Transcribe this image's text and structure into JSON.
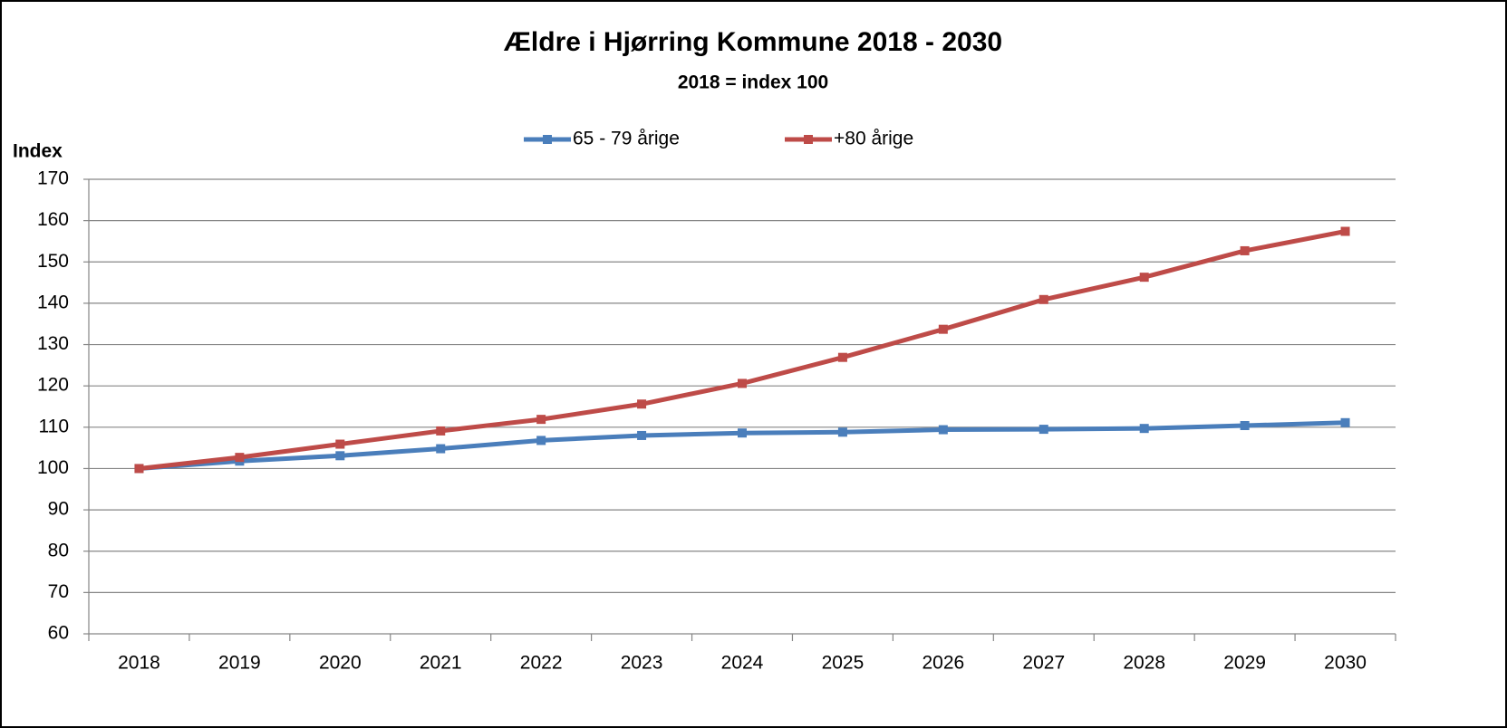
{
  "chart_data": {
    "type": "line",
    "title": "Ældre i Hjørring Kommune 2018 - 2030",
    "subtitle": "2018 = index 100",
    "y_label": "Index",
    "categories": [
      "2018",
      "2019",
      "2020",
      "2021",
      "2022",
      "2023",
      "2024",
      "2025",
      "2026",
      "2027",
      "2028",
      "2029",
      "2030"
    ],
    "series": [
      {
        "name": "65 - 79 årige",
        "color": "#4a7ebb",
        "values": [
          100,
          101.8,
          103.1,
          104.8,
          106.8,
          108,
          108.6,
          108.8,
          109.4,
          109.5,
          109.7,
          110.4,
          111.1
        ]
      },
      {
        "name": "+80 årige",
        "color": "#be4b48",
        "values": [
          100,
          102.7,
          105.9,
          109.1,
          111.9,
          115.6,
          120.6,
          126.9,
          133.7,
          140.9,
          146.3,
          152.7,
          157.4
        ]
      }
    ],
    "ylim": [
      60,
      170
    ],
    "yticks": [
      60,
      70,
      80,
      90,
      100,
      110,
      120,
      130,
      140,
      150,
      160,
      170
    ],
    "grid": true,
    "legend": "top"
  }
}
